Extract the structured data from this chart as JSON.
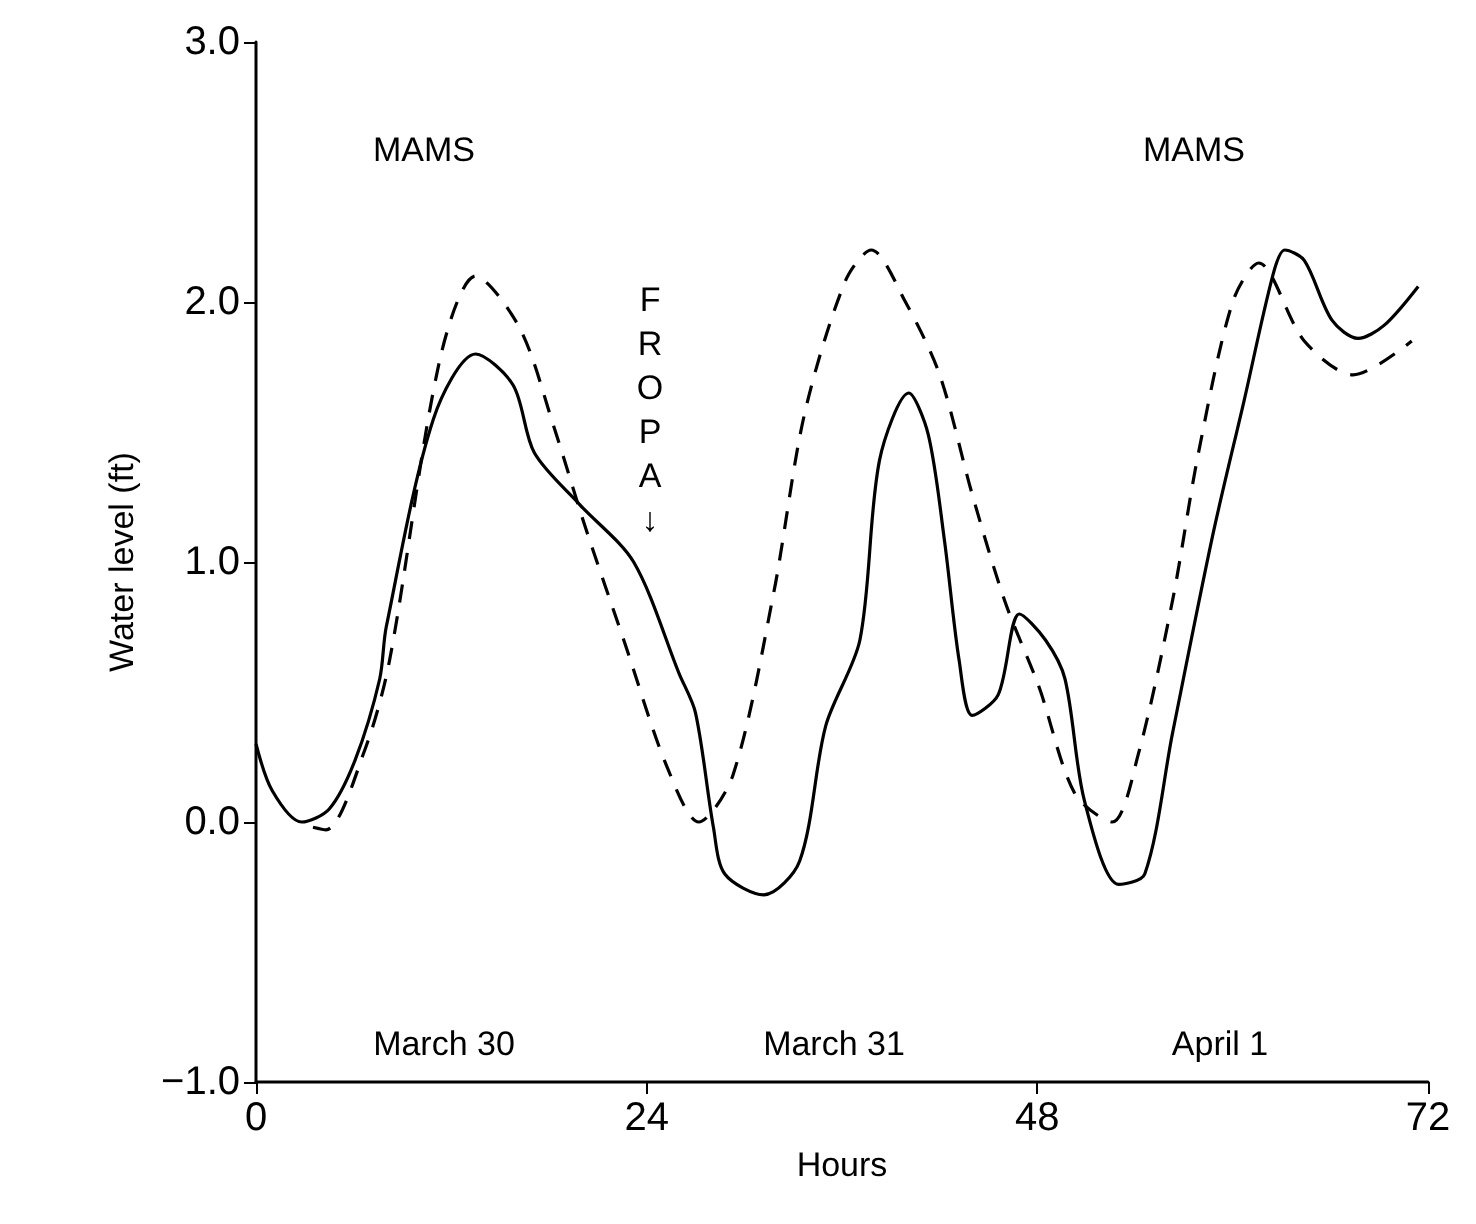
{
  "chart_data": {
    "type": "line",
    "xlabel": "Hours",
    "ylabel": "Water level (ft)",
    "xlim": [
      0,
      72
    ],
    "xticks": [
      0,
      24,
      48,
      72
    ],
    "ylim": [
      -1,
      3
    ],
    "yticks": [
      {
        "value": -1,
        "label": "−1.0"
      },
      {
        "value": 0,
        "label": "0.0"
      },
      {
        "value": 1,
        "label": "1.0"
      },
      {
        "value": 2,
        "label": "2.0"
      },
      {
        "value": 3,
        "label": "3.0"
      }
    ],
    "grid": false,
    "marker": "none",
    "series": [
      {
        "color": "#000000",
        "line_style": "solid",
        "x": [
          0,
          1,
          2.8,
          4.5,
          6.1,
          7.6,
          8.0,
          10.9,
          13.5,
          15.8,
          17.1,
          19.9,
          23.2,
          26.0,
          27.0,
          28.1,
          28.8,
          31.2,
          33.4,
          35.0,
          37.1,
          38.3,
          40.1,
          41.3,
          42.3,
          43.2,
          44.0,
          45.6,
          46.9,
          48.5,
          49.7,
          50.9,
          53.0,
          54.6,
          56.3,
          58.8,
          60.7,
          62.5,
          63.2,
          64.4,
          66.1,
          67.7,
          69.3,
          71.4
        ],
        "values": [
          0.3,
          0.12,
          0.0,
          0.05,
          0.24,
          0.55,
          0.75,
          1.55,
          1.8,
          1.68,
          1.42,
          1.22,
          1.0,
          0.57,
          0.42,
          -0.02,
          -0.2,
          -0.28,
          -0.15,
          0.37,
          0.7,
          1.39,
          1.65,
          1.49,
          1.08,
          0.62,
          0.41,
          0.49,
          0.8,
          0.7,
          0.55,
          0.08,
          -0.24,
          -0.2,
          0.34,
          1.11,
          1.62,
          2.11,
          2.2,
          2.16,
          1.93,
          1.86,
          1.91,
          2.06
        ]
      },
      {
        "color": "#000000",
        "line_style": "dashed",
        "x": [
          3.5,
          4.3,
          6.7,
          8.2,
          11.3,
          13.5,
          16.2,
          18.3,
          20.2,
          22.7,
          25.2,
          27.2,
          29.3,
          31.8,
          33.7,
          36.2,
          37.8,
          39.9,
          42.0,
          44.0,
          46.0,
          48.1,
          50.3,
          52.6,
          54.2,
          56.3,
          57.9,
          60.0,
          61.6,
          64.4,
          67.4,
          71.0
        ],
        "values": [
          -0.02,
          -0.03,
          0.28,
          0.62,
          1.78,
          2.1,
          1.9,
          1.52,
          1.14,
          0.68,
          0.22,
          0.0,
          0.18,
          0.88,
          1.57,
          2.08,
          2.2,
          2.0,
          1.72,
          1.26,
          0.85,
          0.52,
          0.11,
          0.0,
          0.26,
          0.85,
          1.42,
          2.0,
          2.15,
          1.85,
          1.72,
          1.85
        ]
      }
    ],
    "annotations": [
      "MAMS",
      "MAMS",
      "FROPA ↓",
      "March 30",
      "March 31",
      "April 1"
    ]
  }
}
